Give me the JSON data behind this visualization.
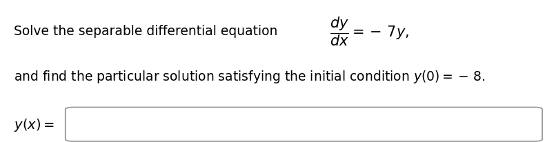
{
  "background_color": "#ffffff",
  "text_color": "#000000",
  "box_edge_color": "#999999",
  "figsize": [
    7.9,
    2.06
  ],
  "dpi": 100,
  "line1_plain": "Solve the separable differential equation ",
  "line1_math": "$\\dfrac{dy}{dx} = -\\,7y,$",
  "line2": "and find the particular solution satisfying the initial condition $y(0) = -\\,8.$",
  "line3_label": "$y(x) =$",
  "font_size_plain": 13.5,
  "font_size_math": 15,
  "font_size_line2": 13.5,
  "font_size_label": 14
}
